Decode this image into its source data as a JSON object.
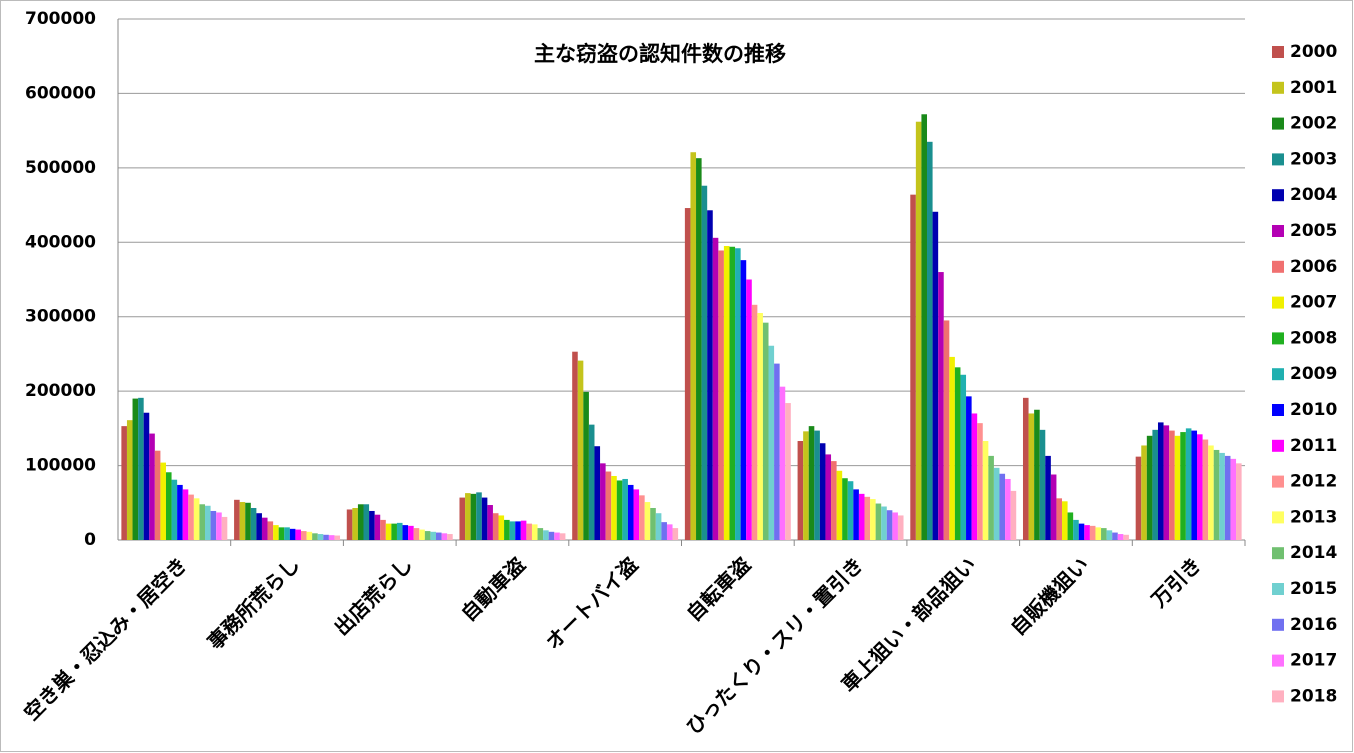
{
  "chart_data": {
    "type": "bar",
    "title": "主な窃盗の認知件数の推移",
    "categories": [
      "空き巣・忍込み・居空き",
      "事務所荒らし",
      "出店荒らし",
      "自動車盗",
      "オートバイ盗",
      "自転車盗",
      "ひったくり・スリ・置引き",
      "車上狙い・部品狙い",
      "自販機狙い",
      "万引き"
    ],
    "ylim": [
      0,
      700000
    ],
    "yticks": [
      0,
      100000,
      200000,
      300000,
      400000,
      500000,
      600000,
      700000
    ],
    "grid": true,
    "legend": "right",
    "series": [
      {
        "name": "2000",
        "color": "#c0504d",
        "values": [
          153000,
          54000,
          41000,
          57000,
          253000,
          446000,
          133000,
          464000,
          191000,
          112000
        ]
      },
      {
        "name": "2001",
        "color": "#c4c41c",
        "values": [
          161000,
          51000,
          43000,
          63000,
          241000,
          521000,
          146000,
          562000,
          170000,
          127000
        ]
      },
      {
        "name": "2002",
        "color": "#1a8a1a",
        "values": [
          190000,
          50000,
          48000,
          62000,
          199000,
          513000,
          153000,
          572000,
          175000,
          140000
        ]
      },
      {
        "name": "2003",
        "color": "#1a8f8f",
        "values": [
          191000,
          43000,
          48000,
          64000,
          155000,
          476000,
          147000,
          535000,
          148000,
          148000
        ]
      },
      {
        "name": "2004",
        "color": "#0000b0",
        "values": [
          171000,
          36000,
          39000,
          57000,
          126000,
          443000,
          130000,
          441000,
          113000,
          158000
        ]
      },
      {
        "name": "2005",
        "color": "#b400b4",
        "values": [
          143000,
          30000,
          34000,
          47000,
          103000,
          406000,
          115000,
          360000,
          88000,
          154000
        ]
      },
      {
        "name": "2006",
        "color": "#f07070",
        "values": [
          120000,
          25000,
          27000,
          36000,
          92000,
          389000,
          106000,
          295000,
          56000,
          147000
        ]
      },
      {
        "name": "2007",
        "color": "#f0f000",
        "values": [
          104000,
          20000,
          22000,
          33000,
          86000,
          395000,
          93000,
          246000,
          52000,
          140000
        ]
      },
      {
        "name": "2008",
        "color": "#20b020",
        "values": [
          91000,
          17000,
          22000,
          27000,
          80000,
          394000,
          83000,
          232000,
          37000,
          145000
        ]
      },
      {
        "name": "2009",
        "color": "#20b0b0",
        "values": [
          81000,
          17000,
          23000,
          25000,
          82000,
          392000,
          79000,
          222000,
          27000,
          150000
        ]
      },
      {
        "name": "2010",
        "color": "#0000ff",
        "values": [
          74000,
          15000,
          20000,
          25000,
          74000,
          376000,
          68000,
          193000,
          22000,
          147000
        ]
      },
      {
        "name": "2011",
        "color": "#ff00ff",
        "values": [
          68000,
          14000,
          19000,
          26000,
          68000,
          350000,
          62000,
          170000,
          20000,
          142000
        ]
      },
      {
        "name": "2012",
        "color": "#ff9090",
        "values": [
          61000,
          12000,
          16000,
          22000,
          60000,
          316000,
          58000,
          157000,
          19000,
          135000
        ]
      },
      {
        "name": "2013",
        "color": "#ffff60",
        "values": [
          56000,
          11000,
          14000,
          21000,
          51000,
          305000,
          55000,
          133000,
          17000,
          127000
        ]
      },
      {
        "name": "2014",
        "color": "#70c070",
        "values": [
          48000,
          9000,
          12000,
          16000,
          43000,
          292000,
          49000,
          113000,
          16000,
          121000
        ]
      },
      {
        "name": "2015",
        "color": "#70d0d0",
        "values": [
          46000,
          8000,
          11000,
          13000,
          36000,
          261000,
          45000,
          97000,
          13000,
          117000
        ]
      },
      {
        "name": "2016",
        "color": "#7070f0",
        "values": [
          39000,
          7000,
          10000,
          11000,
          24000,
          237000,
          40000,
          89000,
          10000,
          113000
        ]
      },
      {
        "name": "2017",
        "color": "#ff70ff",
        "values": [
          37000,
          6500,
          9000,
          10000,
          21000,
          206000,
          37000,
          82000,
          8000,
          109000
        ]
      },
      {
        "name": "2018",
        "color": "#ffb0c0",
        "values": [
          31000,
          6000,
          8000,
          9000,
          16000,
          184000,
          33000,
          66000,
          7000,
          103000
        ]
      }
    ]
  }
}
